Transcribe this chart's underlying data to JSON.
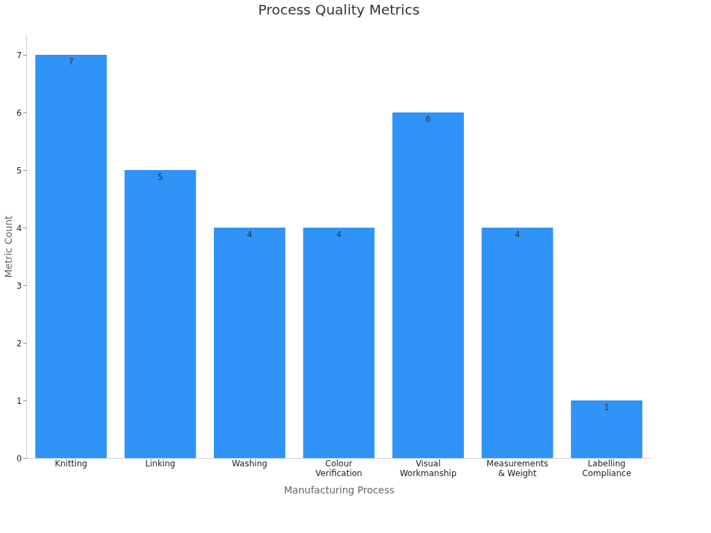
{
  "chart_data": {
    "type": "bar",
    "title": "Process Quality Metrics",
    "xlabel": "Manufacturing Process",
    "ylabel": "Metric Count",
    "categories": [
      "Knitting",
      "Linking",
      "Washing",
      "Colour Verification",
      "Visual Workmanship",
      "Measurements & Weight",
      "Labelling Compliance"
    ],
    "values": [
      7,
      5,
      4,
      4,
      6,
      4,
      1
    ],
    "color": "#2f93f8",
    "ylim": [
      0,
      7.35
    ],
    "yticks": [
      0,
      1,
      2,
      3,
      4,
      5,
      6,
      7
    ],
    "grid": false,
    "data_labels": true
  }
}
